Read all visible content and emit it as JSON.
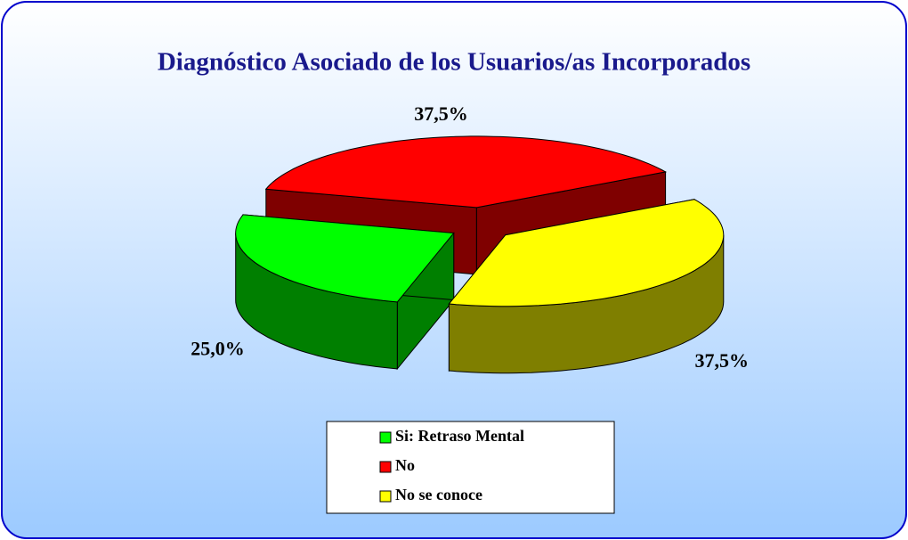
{
  "chart_data": {
    "type": "pie3d",
    "title": "Diagnóstico Asociado de los Usuarios/as Incorporados",
    "categories": [
      "Si: Retraso Mental",
      "No",
      "No se conoce"
    ],
    "values": [
      25,
      37.5,
      37.5
    ],
    "value_labels": [
      "25,0%",
      "37,5%",
      "37,5%"
    ],
    "colors": [
      "#00ff00",
      "#ff0000",
      "#ffff00"
    ],
    "legend": "bottom"
  }
}
